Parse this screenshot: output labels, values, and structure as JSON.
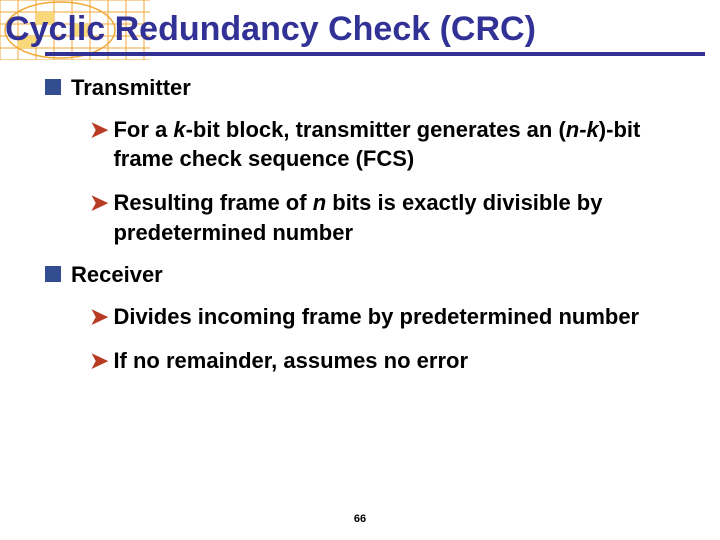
{
  "title": "Cyclic Redundancy Check (CRC)",
  "items": [
    {
      "label": "Transmitter",
      "subs": [
        {
          "parts": [
            {
              "text": "For a ",
              "italic": false
            },
            {
              "text": "k",
              "italic": true
            },
            {
              "text": "-bit block, transmitter generates an (",
              "italic": false
            },
            {
              "text": "n-k",
              "italic": true
            },
            {
              "text": ")-bit frame check sequence (FCS)",
              "italic": false
            }
          ]
        },
        {
          "parts": [
            {
              "text": "Resulting frame of ",
              "italic": false
            },
            {
              "text": "n",
              "italic": true
            },
            {
              "text": " bits is exactly divisible by predetermined number",
              "italic": false
            }
          ]
        }
      ]
    },
    {
      "label": "Receiver",
      "subs": [
        {
          "parts": [
            {
              "text": "Divides incoming frame by predetermined number",
              "italic": false
            }
          ]
        },
        {
          "parts": [
            {
              "text": "If no remainder, assumes no error",
              "italic": false
            }
          ]
        }
      ]
    }
  ],
  "page_number": "66",
  "colors": {
    "title": "#323296",
    "bullet_square": "#324e91",
    "arrow": "#b83c23",
    "grid_orange": "#f0a838",
    "grid_yellow": "#f8d878"
  }
}
